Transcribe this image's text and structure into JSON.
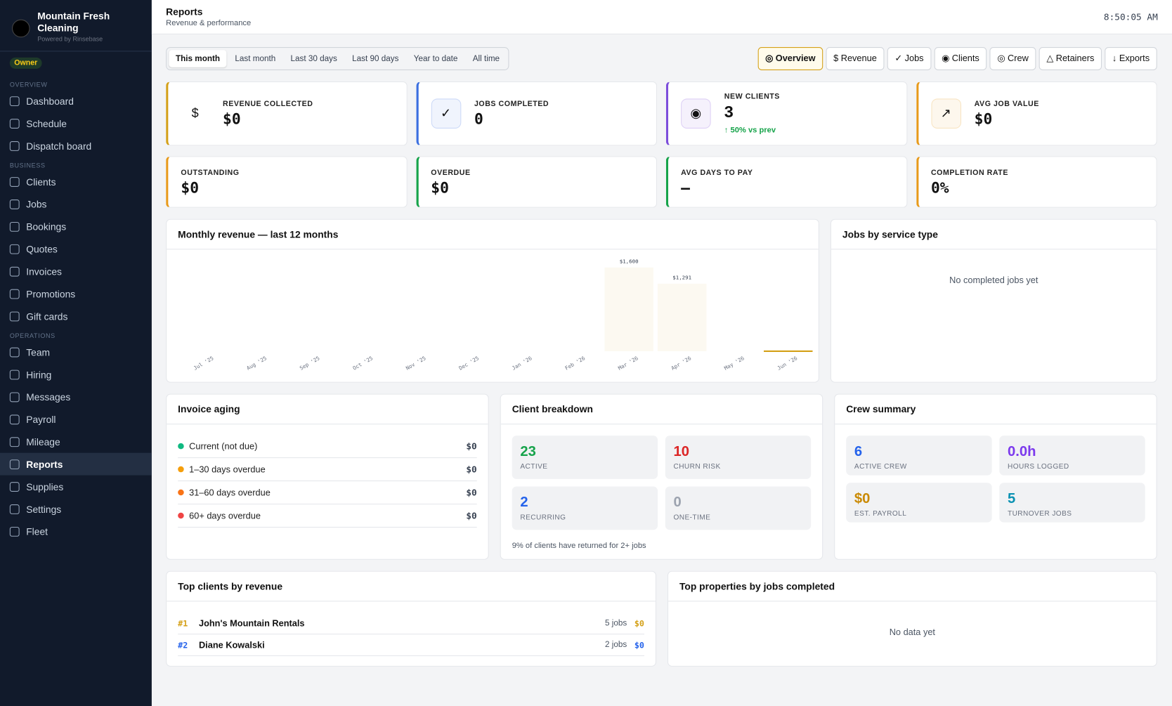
{
  "sidebar": {
    "brand": "Mountain Fresh Cleaning",
    "powered": "Powered by Rinsebase",
    "role": "Owner",
    "active": "Reports",
    "sections": [
      {
        "label": "OVERVIEW",
        "items": [
          "Dashboard",
          "Schedule",
          "Dispatch board"
        ]
      },
      {
        "label": "BUSINESS",
        "items": [
          "Clients",
          "Jobs",
          "Bookings",
          "Quotes",
          "Invoices",
          "Promotions",
          "Gift cards"
        ]
      },
      {
        "label": "OPERATIONS",
        "items": [
          "Team",
          "Hiring",
          "Messages",
          "Payroll",
          "Mileage",
          "Reports",
          "Supplies",
          "Settings",
          "Fleet"
        ]
      }
    ]
  },
  "header": {
    "title": "Reports",
    "subtitle": "Revenue & performance",
    "clock": "8:50:05 AM"
  },
  "ranges": [
    "This month",
    "Last month",
    "Last 30 days",
    "Last 90 days",
    "Year to date",
    "All time"
  ],
  "tabs": [
    "◎ Overview",
    "$ Revenue",
    "✓ Jobs",
    "◉ Clients",
    "◎ Crew",
    "△ Retainers",
    "↓ Exports"
  ],
  "kpis": [
    {
      "label": "REVENUE COLLECTED",
      "value": "$0",
      "icon": "$",
      "color": "#d4a017"
    },
    {
      "label": "JOBS COMPLETED",
      "value": "0",
      "icon": "✓",
      "color": "#3b6fe0"
    },
    {
      "label": "NEW CLIENTS",
      "value": "3",
      "icon": "◉",
      "color": "#7c4ddb",
      "delta": "↑ 50% vs prev"
    },
    {
      "label": "AVG JOB VALUE",
      "value": "$0",
      "icon": "↗",
      "color": "#e89a1a"
    }
  ],
  "stats": [
    {
      "label": "OUTSTANDING",
      "value": "$0",
      "color": "#e89a1a"
    },
    {
      "label": "OVERDUE",
      "value": "$0",
      "color": "#16a34a"
    },
    {
      "label": "AVG DAYS TO PAY",
      "value": "—",
      "color": "#16a34a"
    },
    {
      "label": "COMPLETION RATE",
      "value": "0%",
      "color": "#e89a1a"
    }
  ],
  "revenue_chart": {
    "type": "bar",
    "title": "Monthly revenue — last 12 months",
    "categories": [
      "Jul '25",
      "Aug '25",
      "Sep '25",
      "Oct '25",
      "Nov '25",
      "Dec '25",
      "Jan '26",
      "Feb '26",
      "Mar '26",
      "Apr '26",
      "May '26",
      "Jun '26"
    ],
    "values": [
      0,
      0,
      0,
      0,
      0,
      0,
      0,
      0,
      1600,
      1291,
      0,
      0
    ],
    "value_labels": [
      null,
      null,
      null,
      null,
      null,
      null,
      null,
      null,
      "$1,600",
      "$1,291",
      null,
      null
    ],
    "color": "#d4a017"
  },
  "service_type": {
    "title": "Jobs by service type",
    "empty": "No completed jobs yet"
  },
  "invoice_aging": {
    "title": "Invoice aging",
    "rows": [
      {
        "label": "Current (not due)",
        "amount": "$0",
        "color": "#10b981"
      },
      {
        "label": "1–30 days overdue",
        "amount": "$0",
        "color": "#f59e0b"
      },
      {
        "label": "31–60 days overdue",
        "amount": "$0",
        "color": "#f97316"
      },
      {
        "label": "60+ days overdue",
        "amount": "$0",
        "color": "#ef4444"
      }
    ]
  },
  "client_breakdown": {
    "title": "Client breakdown",
    "tiles": [
      {
        "value": "23",
        "label": "ACTIVE",
        "color": "#16a34a"
      },
      {
        "value": "10",
        "label": "CHURN RISK",
        "color": "#dc2626"
      },
      {
        "value": "2",
        "label": "RECURRING",
        "color": "#2563eb"
      },
      {
        "value": "0",
        "label": "ONE-TIME",
        "color": "#9ca3af"
      }
    ],
    "note": "9% of clients have returned for 2+ jobs"
  },
  "crew_summary": {
    "title": "Crew summary",
    "tiles": [
      {
        "value": "6",
        "label": "ACTIVE CREW",
        "color": "#2563eb"
      },
      {
        "value": "0.0h",
        "label": "HOURS LOGGED",
        "color": "#7c3aed"
      },
      {
        "value": "$0",
        "label": "EST. PAYROLL",
        "color": "#ca8a04"
      },
      {
        "value": "5",
        "label": "TURNOVER JOBS",
        "color": "#0891b2"
      }
    ]
  },
  "top_clients": {
    "title": "Top clients by revenue",
    "rows": [
      {
        "rank": "#1",
        "name": "John's Mountain Rentals",
        "jobs": "5 jobs",
        "revenue": "$0",
        "color": "#d4a017"
      },
      {
        "rank": "#2",
        "name": "Diane Kowalski",
        "jobs": "2 jobs",
        "revenue": "$0",
        "color": "#2563eb"
      }
    ]
  },
  "top_properties": {
    "title": "Top properties by jobs completed",
    "empty": "No data yet"
  }
}
